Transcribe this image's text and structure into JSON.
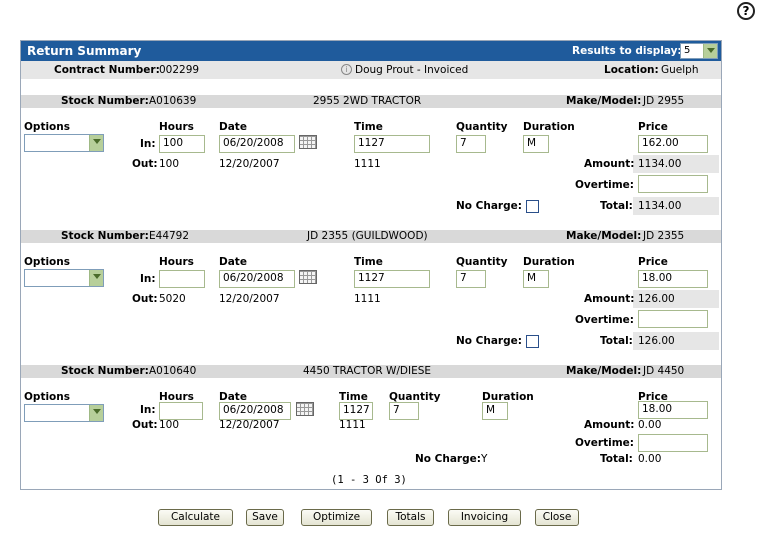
{
  "help_icon_glyph": "?",
  "header": {
    "title": "Return Summary",
    "results_label": "Results to display:",
    "results_value": "5"
  },
  "contract": {
    "number_label": "Contract Number:",
    "number": "002299",
    "customer": "Doug Prout - Invoiced",
    "location_label": "Location:",
    "location": "Guelph"
  },
  "labels": {
    "stock_number": "Stock Number:",
    "make_model": "Make/Model:",
    "options": "Options",
    "hours": "Hours",
    "date": "Date",
    "time": "Time",
    "quantity": "Quantity",
    "duration": "Duration",
    "price": "Price",
    "in": "In:",
    "out": "Out:",
    "amount": "Amount:",
    "overtime": "Overtime:",
    "no_charge": "No Charge:",
    "total": "Total:"
  },
  "items": [
    {
      "stock_number": "A010639",
      "description": "2955 2WD TRACTOR",
      "make_model": "JD 2955",
      "hours_in": "100",
      "date_in": "06/20/2008",
      "time_in": "1127",
      "quantity": "7",
      "duration": "M",
      "price": "162.00",
      "hours_out": "100",
      "date_out": "12/20/2007",
      "time_out": "1111",
      "amount": "1134.00",
      "overtime": "",
      "no_charge": "",
      "total": "1134.00"
    },
    {
      "stock_number": "E44792",
      "description": "JD 2355 (GUILDWOOD)",
      "make_model": "JD 2355",
      "hours_in": "",
      "date_in": "06/20/2008",
      "time_in": "1127",
      "quantity": "7",
      "duration": "M",
      "price": "18.00",
      "hours_out": "5020",
      "date_out": "12/20/2007",
      "time_out": "1111",
      "amount": "126.00",
      "overtime": "",
      "no_charge": "",
      "total": "126.00"
    },
    {
      "stock_number": "A010640",
      "description": "4450 TRACTOR W/DIESE",
      "make_model": "JD 4450",
      "hours_in": "",
      "date_in": "06/20/2008",
      "time_in": "1127",
      "quantity": "7",
      "duration": "M",
      "price": "18.00",
      "hours_out": "100",
      "date_out": "12/20/2007",
      "time_out": "1111",
      "amount": "0.00",
      "overtime": "",
      "no_charge": "Y",
      "total": "0.00"
    }
  ],
  "pager": "(1 - 3 Of 3)",
  "buttons": {
    "calculate": "Calculate",
    "save": "Save",
    "optimize": "Optimize",
    "totals": "Totals",
    "invoicing": "Invoicing",
    "close": "Close"
  }
}
